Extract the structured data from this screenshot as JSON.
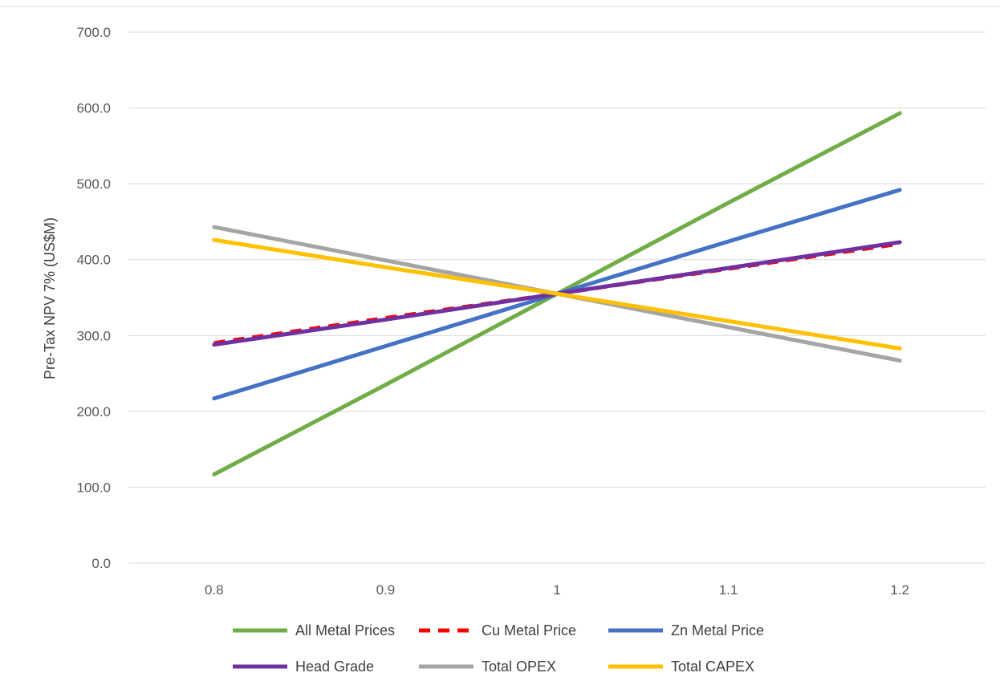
{
  "chart_data": {
    "type": "line",
    "title": "",
    "xlabel": "",
    "ylabel": "Pre-Tax NPV 7% (US$M)",
    "x": [
      0.8,
      0.9,
      1.0,
      1.1,
      1.2
    ],
    "x_tick_labels": [
      "0.8",
      "0.9",
      "1",
      "1.1",
      "1.2"
    ],
    "xlim": [
      0.75,
      1.25
    ],
    "ylim": [
      0,
      700
    ],
    "y_ticks": [
      0,
      100,
      200,
      300,
      400,
      500,
      600,
      700
    ],
    "y_tick_labels": [
      "0.0",
      "100.0",
      "200.0",
      "300.0",
      "400.0",
      "500.0",
      "600.0",
      "700.0"
    ],
    "grid": true,
    "legend_position": "bottom",
    "series": [
      {
        "name": "All Metal Prices",
        "color": "#70ad47",
        "dash": "solid",
        "values": [
          117,
          235,
          355,
          475,
          593
        ]
      },
      {
        "name": "Cu Metal Price",
        "color": "#ff0000",
        "dash": "dashed",
        "values": [
          290,
          323,
          355,
          388,
          421
        ]
      },
      {
        "name": "Zn Metal Price",
        "color": "#4472c4",
        "dash": "solid",
        "values": [
          217,
          286,
          355,
          424,
          492
        ]
      },
      {
        "name": "Head Grade",
        "color": "#7030a0",
        "dash": "solid",
        "values": [
          288,
          321,
          355,
          389,
          423
        ]
      },
      {
        "name": "Total OPEX",
        "color": "#a5a5a5",
        "dash": "solid",
        "values": [
          443,
          399,
          355,
          311,
          267
        ]
      },
      {
        "name": "Total CAPEX",
        "color": "#ffc000",
        "dash": "solid",
        "values": [
          426,
          390,
          355,
          319,
          283
        ]
      }
    ]
  }
}
